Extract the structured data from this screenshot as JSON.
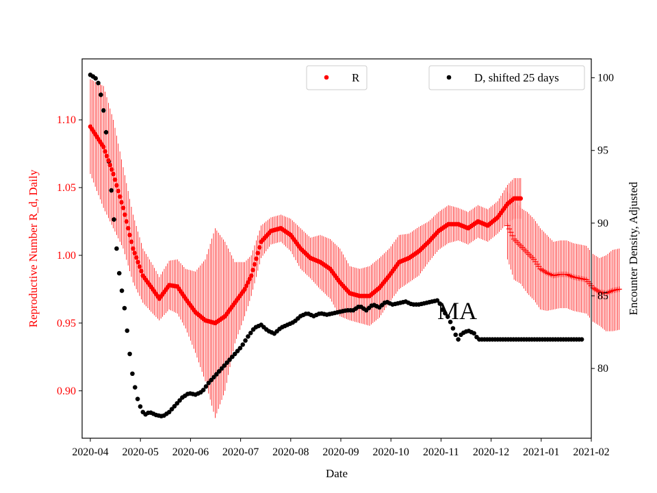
{
  "chart_data": {
    "type": "scatter",
    "title": "",
    "xlabel": "Date",
    "ylabel_left": "Reproductive Number R_d, Daily",
    "ylabel_right": "Encounter Density, Adjusted",
    "annotation": "MA",
    "x_tick_labels": [
      "2020-04",
      "2020-05",
      "2020-06",
      "2020-07",
      "2020-08",
      "2020-09",
      "2020-10",
      "2020-11",
      "2020-12",
      "2021-01",
      "2021-02"
    ],
    "left_ticks": [
      0.9,
      0.95,
      1.0,
      1.05,
      1.1
    ],
    "right_ticks": [
      80,
      85,
      90,
      95,
      100
    ],
    "left_ylim": [
      0.865,
      1.145
    ],
    "right_ylim": [
      75.2,
      101.3
    ],
    "xlim_days": [
      -5,
      305
    ],
    "colors": {
      "r_series": "#ff0000",
      "d_series": "#000000",
      "r_axis": "#ff0000"
    },
    "legend": [
      {
        "label": "R",
        "color": "#ff0000",
        "position": "upper-center"
      },
      {
        "label": "D, shifted 25 days",
        "color": "#000000",
        "position": "upper-right"
      }
    ],
    "series": [
      {
        "name": "R",
        "axis": "left",
        "marker": "dot",
        "error_bars": true,
        "points": [
          [
            0,
            1.095
          ],
          [
            8,
            1.08
          ],
          [
            14,
            1.06
          ],
          [
            20,
            1.035
          ],
          [
            26,
            1.005
          ],
          [
            32,
            0.985
          ],
          [
            38,
            0.975
          ],
          [
            42,
            0.968
          ],
          [
            48,
            0.978
          ],
          [
            53,
            0.977
          ],
          [
            58,
            0.968
          ],
          [
            64,
            0.958
          ],
          [
            70,
            0.952
          ],
          [
            76,
            0.95
          ],
          [
            82,
            0.955
          ],
          [
            88,
            0.965
          ],
          [
            94,
            0.975
          ],
          [
            98,
            0.985
          ],
          [
            104,
            1.01
          ],
          [
            110,
            1.018
          ],
          [
            116,
            1.02
          ],
          [
            122,
            1.015
          ],
          [
            128,
            1.005
          ],
          [
            134,
            0.998
          ],
          [
            140,
            0.995
          ],
          [
            146,
            0.99
          ],
          [
            152,
            0.98
          ],
          [
            158,
            0.972
          ],
          [
            164,
            0.97
          ],
          [
            170,
            0.97
          ],
          [
            176,
            0.976
          ],
          [
            182,
            0.985
          ],
          [
            188,
            0.995
          ],
          [
            194,
            0.998
          ],
          [
            200,
            1.003
          ],
          [
            206,
            1.01
          ],
          [
            212,
            1.018
          ],
          [
            218,
            1.023
          ],
          [
            224,
            1.023
          ],
          [
            230,
            1.02
          ],
          [
            236,
            1.025
          ],
          [
            242,
            1.022
          ],
          [
            248,
            1.028
          ],
          [
            254,
            1.038
          ],
          [
            258,
            1.042
          ],
          [
            262,
            1.042
          ]
        ],
        "error_half_width": [
          0.035,
          0.045,
          0.04,
          0.03,
          0.025,
          0.02,
          0.018,
          0.016,
          0.018,
          0.02,
          0.022,
          0.03,
          0.045,
          0.07,
          0.055,
          0.03,
          0.02,
          0.015,
          0.012,
          0.01,
          0.01,
          0.012,
          0.015,
          0.015,
          0.02,
          0.022,
          0.025,
          0.02,
          0.02,
          0.022,
          0.022,
          0.02,
          0.02,
          0.018,
          0.018,
          0.015,
          0.014,
          0.014,
          0.012,
          0.012,
          0.012,
          0.012,
          0.012,
          0.014,
          0.015,
          0.015
        ]
      },
      {
        "name": "R (extended)",
        "axis": "left",
        "marker": "plus",
        "error_bars": true,
        "points": [
          [
            254,
            1.022
          ],
          [
            258,
            1.012
          ],
          [
            262,
            1.007
          ],
          [
            266,
            1.002
          ],
          [
            270,
            0.997
          ],
          [
            274,
            0.99
          ],
          [
            278,
            0.987
          ],
          [
            282,
            0.985
          ],
          [
            286,
            0.986
          ],
          [
            290,
            0.986
          ],
          [
            294,
            0.984
          ],
          [
            298,
            0.983
          ],
          [
            302,
            0.982
          ],
          [
            306,
            0.976
          ],
          [
            310,
            0.973
          ],
          [
            314,
            0.972
          ],
          [
            318,
            0.974
          ],
          [
            322,
            0.975
          ]
        ],
        "error_half_width": [
          0.025,
          0.03,
          0.028,
          0.03,
          0.03,
          0.03,
          0.028,
          0.025,
          0.025,
          0.025,
          0.025,
          0.025,
          0.025,
          0.025,
          0.025,
          0.028,
          0.03,
          0.03
        ]
      },
      {
        "name": "D, shifted 25 days",
        "axis": "right",
        "marker": "dot",
        "points": [
          [
            0,
            100.2
          ],
          [
            3,
            100.0
          ],
          [
            5,
            99.6
          ],
          [
            7,
            98.5
          ],
          [
            9,
            97.0
          ],
          [
            11,
            94.5
          ],
          [
            13,
            92.0
          ],
          [
            15,
            89.5
          ],
          [
            17,
            87.0
          ],
          [
            19,
            85.5
          ],
          [
            21,
            84.0
          ],
          [
            23,
            82.0
          ],
          [
            25,
            80.0
          ],
          [
            27,
            78.8
          ],
          [
            29,
            77.8
          ],
          [
            31,
            77.2
          ],
          [
            33,
            76.8
          ],
          [
            36,
            77.0
          ],
          [
            40,
            76.8
          ],
          [
            44,
            76.7
          ],
          [
            48,
            77.0
          ],
          [
            52,
            77.5
          ],
          [
            56,
            78.0
          ],
          [
            60,
            78.3
          ],
          [
            64,
            78.2
          ],
          [
            68,
            78.4
          ],
          [
            72,
            79.0
          ],
          [
            76,
            79.5
          ],
          [
            80,
            80.0
          ],
          [
            84,
            80.5
          ],
          [
            88,
            81.0
          ],
          [
            92,
            81.5
          ],
          [
            96,
            82.2
          ],
          [
            100,
            82.8
          ],
          [
            104,
            83.0
          ],
          [
            108,
            82.6
          ],
          [
            112,
            82.4
          ],
          [
            116,
            82.8
          ],
          [
            120,
            83.0
          ],
          [
            124,
            83.2
          ],
          [
            128,
            83.6
          ],
          [
            132,
            83.8
          ],
          [
            136,
            83.6
          ],
          [
            140,
            83.8
          ],
          [
            144,
            83.7
          ],
          [
            148,
            83.8
          ],
          [
            152,
            83.9
          ],
          [
            156,
            84.0
          ],
          [
            160,
            84.0
          ],
          [
            164,
            84.3
          ],
          [
            168,
            84.0
          ],
          [
            172,
            84.4
          ],
          [
            176,
            84.2
          ],
          [
            180,
            84.6
          ],
          [
            184,
            84.4
          ],
          [
            188,
            84.5
          ],
          [
            192,
            84.6
          ],
          [
            196,
            84.4
          ],
          [
            200,
            84.4
          ],
          [
            204,
            84.5
          ],
          [
            208,
            84.6
          ],
          [
            212,
            84.7
          ],
          [
            214,
            84.1
          ],
          [
            218,
            83.5
          ],
          [
            220,
            83.0
          ],
          [
            222,
            82.4
          ],
          [
            224,
            82.0
          ],
          [
            226,
            82.4
          ],
          [
            230,
            82.6
          ],
          [
            234,
            82.4
          ],
          [
            236,
            82.0
          ],
          [
            240,
            82.0
          ],
          [
            250,
            82.0
          ],
          [
            260,
            82.0
          ],
          [
            270,
            82.0
          ],
          [
            280,
            82.0
          ],
          [
            290,
            82.0
          ],
          [
            300,
            82.0
          ]
        ]
      }
    ]
  }
}
